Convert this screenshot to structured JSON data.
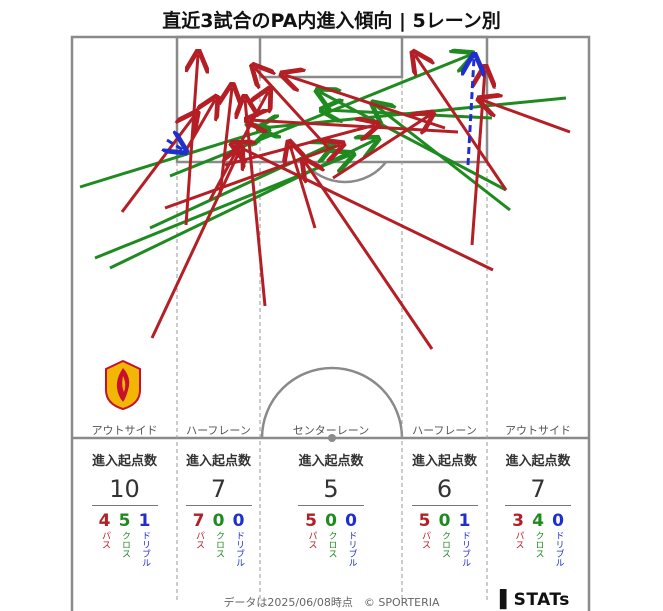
{
  "title": "直近3試合のPA内進入傾向 | 5レーン別",
  "colors": {
    "pass": "#b41e25",
    "cross": "#1f8a1f",
    "dribble": "#1f2fcf",
    "pitch_line": "#8a8a8a"
  },
  "lanes": [
    {
      "label": "アウトサイド",
      "head": "進入起点数",
      "total": "10",
      "pass": "4",
      "cross": "5",
      "dribble": "1"
    },
    {
      "label": "ハーフレーン",
      "head": "進入起点数",
      "total": "7",
      "pass": "7",
      "cross": "0",
      "dribble": "0"
    },
    {
      "label": "センターレーン",
      "head": "進入起点数",
      "total": "5",
      "pass": "5",
      "cross": "0",
      "dribble": "0"
    },
    {
      "label": "ハーフレーン",
      "head": "進入起点数",
      "total": "6",
      "pass": "5",
      "cross": "0",
      "dribble": "1"
    },
    {
      "label": "アウトサイド",
      "head": "進入起点数",
      "total": "7",
      "pass": "3",
      "cross": "4",
      "dribble": "0"
    }
  ],
  "labels": {
    "pass": "パス",
    "cross": "クロス",
    "dribble": "ドリブル"
  },
  "footer": "データは2025/06/08時点　© SPORTERIA",
  "brand": "STATs",
  "crest_icon": "team-crest-icon"
}
